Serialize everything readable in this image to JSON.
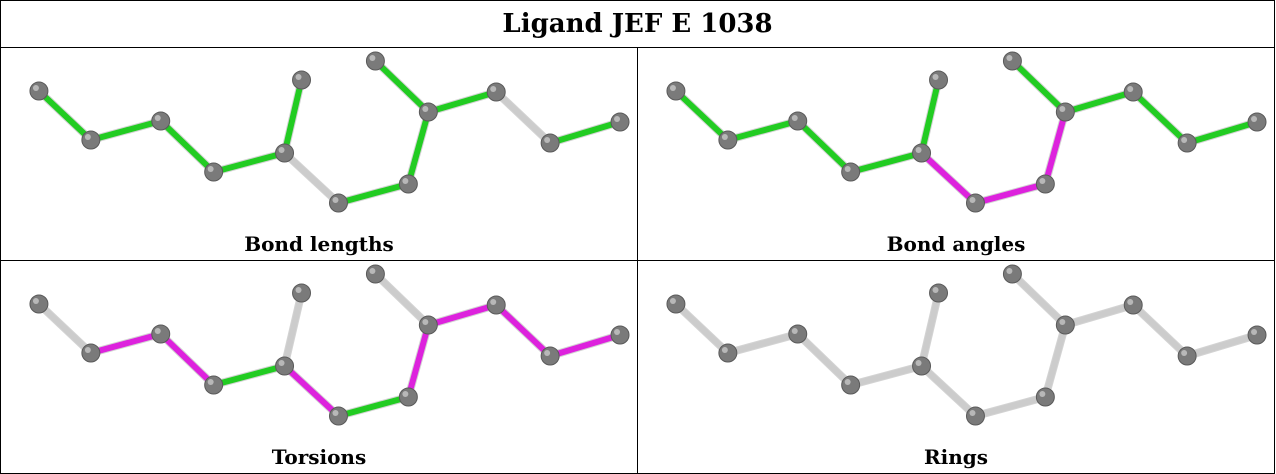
{
  "title": "Ligand JEF E 1038",
  "colors": {
    "green": "#22cc22",
    "magenta": "#dd22dd",
    "grey": "#cccccc",
    "atom": "#7a7a7a"
  },
  "panels": [
    {
      "label": "Bond lengths",
      "bond_colors": [
        "green",
        "green",
        "green",
        "green",
        "green",
        "grey",
        "green",
        "green",
        "green",
        "green",
        "grey",
        "green",
        "green",
        "green"
      ]
    },
    {
      "label": "Bond angles",
      "bond_colors": [
        "green",
        "green",
        "green",
        "green",
        "green",
        "magenta",
        "magenta",
        "magenta",
        "green",
        "green",
        "green",
        "green",
        "green",
        "green"
      ]
    },
    {
      "label": "Torsions",
      "bond_colors": [
        "grey",
        "magenta",
        "magenta",
        "green",
        "grey",
        "magenta",
        "green",
        "magenta",
        "grey",
        "magenta",
        "magenta",
        "magenta",
        "grey",
        "green"
      ]
    },
    {
      "label": "Rings",
      "bond_colors": [
        "grey",
        "grey",
        "grey",
        "grey",
        "grey",
        "grey",
        "grey",
        "grey",
        "grey",
        "grey",
        "grey",
        "grey",
        "grey",
        "grey"
      ]
    }
  ]
}
